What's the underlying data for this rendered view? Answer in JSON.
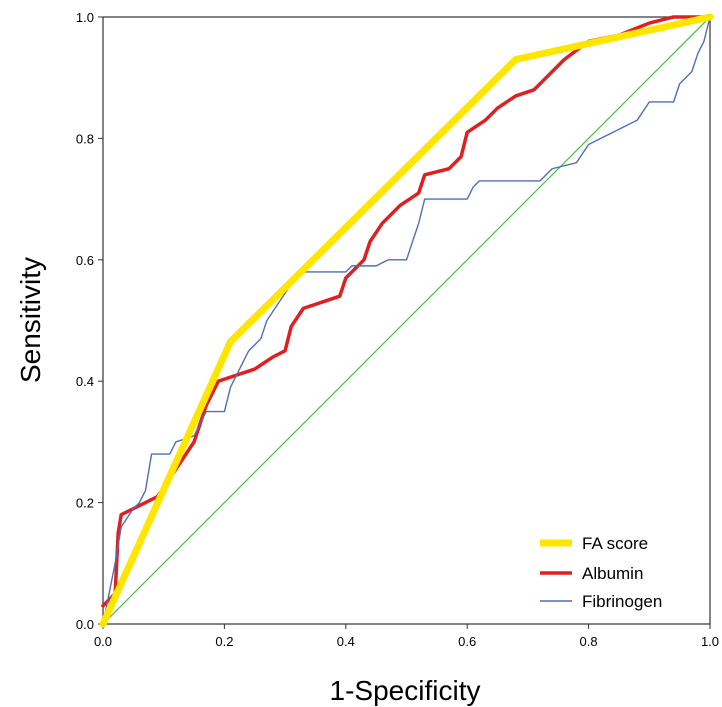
{
  "chart_data": {
    "type": "line",
    "title": "",
    "xlabel": "1-Specificity",
    "ylabel": "Sensitivity",
    "xlim": [
      0,
      1
    ],
    "ylim": [
      0,
      1
    ],
    "x_ticks": [
      "0.0",
      "0.2",
      "0.4",
      "0.6",
      "0.8",
      "1.0"
    ],
    "y_ticks": [
      "0.0",
      "0.2",
      "0.4",
      "0.6",
      "0.8",
      "1.0"
    ],
    "grid": false,
    "legend_position": "bottom-right",
    "reference_line": {
      "color": "#4ec24e",
      "points": [
        [
          0,
          0
        ],
        [
          1,
          1
        ]
      ]
    },
    "series": [
      {
        "name": "FA score",
        "color": "#ffe600",
        "points": [
          [
            0,
            0
          ],
          [
            0.21,
            0.465
          ],
          [
            0.68,
            0.93
          ],
          [
            1,
            1
          ]
        ]
      },
      {
        "name": "Albumin",
        "color": "#e02020",
        "points": [
          [
            0,
            0.03
          ],
          [
            0.01,
            0.04
          ],
          [
            0.02,
            0.05
          ],
          [
            0.025,
            0.15
          ],
          [
            0.03,
            0.18
          ],
          [
            0.05,
            0.19
          ],
          [
            0.07,
            0.2
          ],
          [
            0.09,
            0.21
          ],
          [
            0.11,
            0.24
          ],
          [
            0.13,
            0.27
          ],
          [
            0.15,
            0.3
          ],
          [
            0.17,
            0.36
          ],
          [
            0.19,
            0.4
          ],
          [
            0.22,
            0.41
          ],
          [
            0.25,
            0.42
          ],
          [
            0.28,
            0.44
          ],
          [
            0.3,
            0.45
          ],
          [
            0.31,
            0.49
          ],
          [
            0.33,
            0.52
          ],
          [
            0.36,
            0.53
          ],
          [
            0.39,
            0.54
          ],
          [
            0.4,
            0.57
          ],
          [
            0.43,
            0.6
          ],
          [
            0.44,
            0.63
          ],
          [
            0.46,
            0.66
          ],
          [
            0.49,
            0.69
          ],
          [
            0.52,
            0.71
          ],
          [
            0.53,
            0.74
          ],
          [
            0.57,
            0.75
          ],
          [
            0.59,
            0.77
          ],
          [
            0.6,
            0.81
          ],
          [
            0.63,
            0.83
          ],
          [
            0.65,
            0.85
          ],
          [
            0.68,
            0.87
          ],
          [
            0.71,
            0.88
          ],
          [
            0.73,
            0.9
          ],
          [
            0.76,
            0.93
          ],
          [
            0.8,
            0.96
          ],
          [
            0.85,
            0.97
          ],
          [
            0.9,
            0.99
          ],
          [
            0.94,
            1.0
          ],
          [
            1,
            1
          ]
        ]
      },
      {
        "name": "Fibrinogen",
        "color": "#4f6fb5",
        "points": [
          [
            0,
            0
          ],
          [
            0.02,
            0.1
          ],
          [
            0.03,
            0.16
          ],
          [
            0.05,
            0.19
          ],
          [
            0.06,
            0.2
          ],
          [
            0.07,
            0.22
          ],
          [
            0.08,
            0.28
          ],
          [
            0.11,
            0.28
          ],
          [
            0.12,
            0.3
          ],
          [
            0.15,
            0.31
          ],
          [
            0.16,
            0.33
          ],
          [
            0.17,
            0.35
          ],
          [
            0.2,
            0.35
          ],
          [
            0.21,
            0.39
          ],
          [
            0.23,
            0.43
          ],
          [
            0.24,
            0.45
          ],
          [
            0.26,
            0.47
          ],
          [
            0.27,
            0.5
          ],
          [
            0.29,
            0.53
          ],
          [
            0.31,
            0.56
          ],
          [
            0.32,
            0.58
          ],
          [
            0.4,
            0.58
          ],
          [
            0.41,
            0.59
          ],
          [
            0.45,
            0.59
          ],
          [
            0.47,
            0.6
          ],
          [
            0.5,
            0.6
          ],
          [
            0.51,
            0.63
          ],
          [
            0.52,
            0.66
          ],
          [
            0.53,
            0.7
          ],
          [
            0.6,
            0.7
          ],
          [
            0.61,
            0.72
          ],
          [
            0.62,
            0.73
          ],
          [
            0.72,
            0.73
          ],
          [
            0.74,
            0.75
          ],
          [
            0.78,
            0.76
          ],
          [
            0.8,
            0.79
          ],
          [
            0.82,
            0.8
          ],
          [
            0.84,
            0.81
          ],
          [
            0.88,
            0.83
          ],
          [
            0.9,
            0.86
          ],
          [
            0.94,
            0.86
          ],
          [
            0.95,
            0.89
          ],
          [
            0.97,
            0.91
          ],
          [
            0.98,
            0.94
          ],
          [
            0.99,
            0.96
          ],
          [
            1,
            1
          ]
        ]
      }
    ]
  }
}
